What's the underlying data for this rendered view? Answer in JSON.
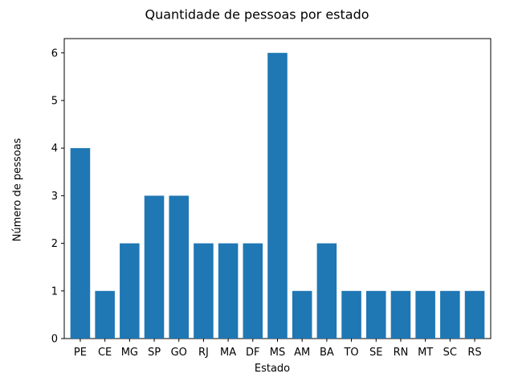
{
  "chart_data": {
    "type": "bar",
    "title": "Quantidade de pessoas por estado",
    "xlabel": "Estado",
    "ylabel": "Número de pessoas",
    "categories": [
      "PE",
      "CE",
      "MG",
      "SP",
      "GO",
      "RJ",
      "MA",
      "DF",
      "MS",
      "AM",
      "BA",
      "TO",
      "SE",
      "RN",
      "MT",
      "SC",
      "RS"
    ],
    "values": [
      4,
      1,
      2,
      3,
      3,
      2,
      2,
      2,
      6,
      1,
      2,
      1,
      1,
      1,
      1,
      1,
      1
    ],
    "ylim": [
      0,
      6.3
    ],
    "yticks": [
      0,
      1,
      2,
      3,
      4,
      5,
      6
    ],
    "grid": false,
    "bar_color": "#1f77b4"
  }
}
